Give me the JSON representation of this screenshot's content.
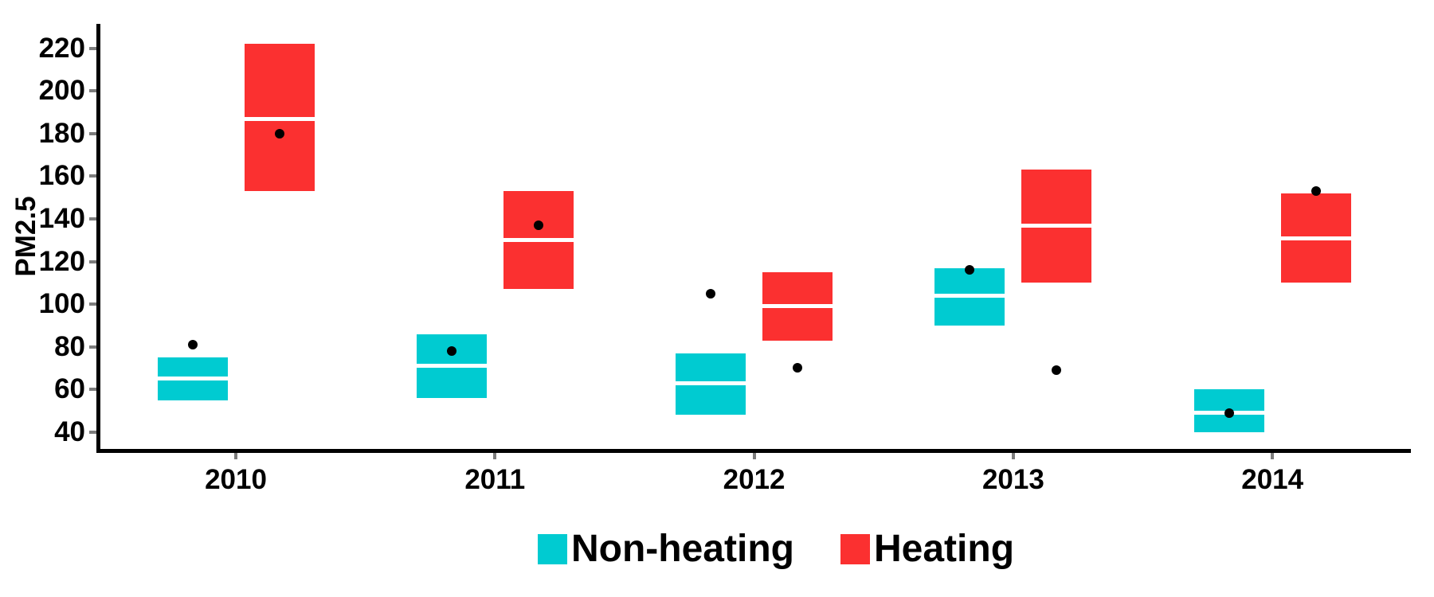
{
  "chart_data": {
    "type": "bar",
    "subtype": "crossbar-boxes-with-points",
    "title": "",
    "xlabel": "",
    "ylabel": "PM2.5",
    "categories": [
      "2010",
      "2011",
      "2012",
      "2013",
      "2014"
    ],
    "y_ticks": [
      40,
      60,
      80,
      100,
      120,
      140,
      160,
      180,
      200,
      220
    ],
    "ylim": [
      30,
      231
    ],
    "grid": "off",
    "legend_position": "bottom",
    "colors": {
      "non_heating": "#00CBD1",
      "heating": "#FB3030",
      "point": "#000000",
      "axis": "#000000",
      "tick": "#7c7c7c",
      "median_line": "#ffffff"
    },
    "series": [
      {
        "name": "Non-heating",
        "color": "#00CBD1",
        "boxes": [
          {
            "year": "2010",
            "ymin": 55,
            "median": 65,
            "ymax": 75,
            "point": 81
          },
          {
            "year": "2011",
            "ymin": 56,
            "median": 71,
            "ymax": 86,
            "point": 78
          },
          {
            "year": "2012",
            "ymin": 48,
            "median": 63,
            "ymax": 77,
            "point": 105
          },
          {
            "year": "2013",
            "ymin": 90,
            "median": 104,
            "ymax": 117,
            "point": 116
          },
          {
            "year": "2014",
            "ymin": 40,
            "median": 49,
            "ymax": 60,
            "point": 49
          }
        ]
      },
      {
        "name": "Heating",
        "color": "#FB3030",
        "boxes": [
          {
            "year": "2010",
            "ymin": 153,
            "median": 187,
            "ymax": 222,
            "point": 180
          },
          {
            "year": "2011",
            "ymin": 107,
            "median": 130,
            "ymax": 153,
            "point": 137
          },
          {
            "year": "2012",
            "ymin": 83,
            "median": 99,
            "ymax": 115,
            "point": 70
          },
          {
            "year": "2013",
            "ymin": 110,
            "median": 137,
            "ymax": 163,
            "point": 69
          },
          {
            "year": "2014",
            "ymin": 110,
            "median": 131,
            "ymax": 152,
            "point": 153
          }
        ]
      }
    ],
    "legend": {
      "items": [
        {
          "label": "Non-heating",
          "color": "#00CBD1"
        },
        {
          "label": "Heating",
          "color": "#FB3030"
        }
      ]
    }
  }
}
